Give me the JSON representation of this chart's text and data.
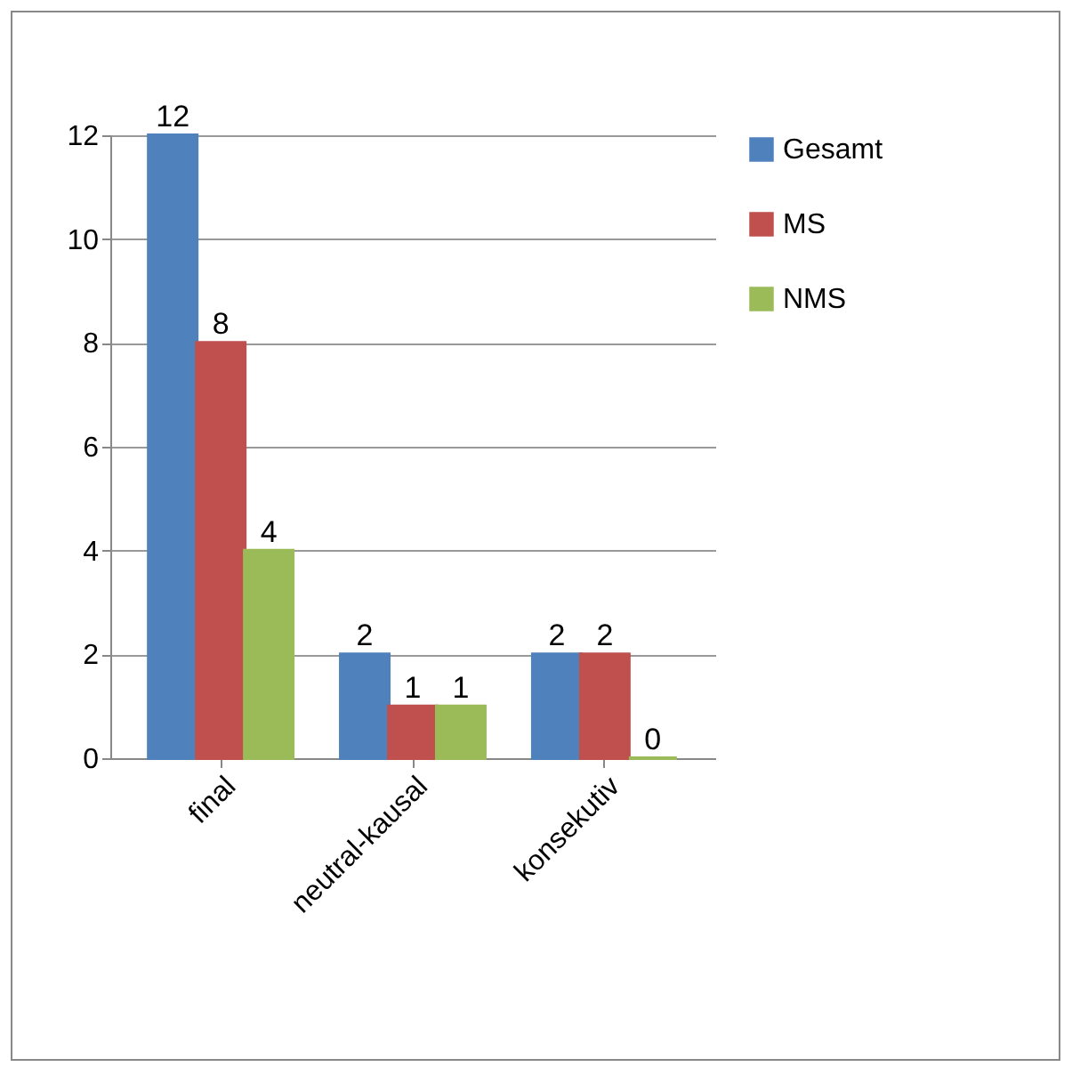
{
  "chart_data": {
    "type": "bar",
    "categories": [
      "final",
      "neutral-kausal",
      "konsekutiv"
    ],
    "series": [
      {
        "name": "Gesamt",
        "color": "#4f81bd",
        "values": [
          12,
          2,
          2
        ]
      },
      {
        "name": "MS",
        "color": "#c0504d",
        "values": [
          8,
          1,
          2
        ]
      },
      {
        "name": "NMS",
        "color": "#9bbb59",
        "values": [
          4,
          1,
          0
        ]
      }
    ],
    "ylim": [
      0,
      12
    ],
    "yticks": [
      0,
      2,
      4,
      6,
      8,
      10,
      12
    ],
    "grid": "y",
    "legend": "right",
    "data_labels": true
  }
}
